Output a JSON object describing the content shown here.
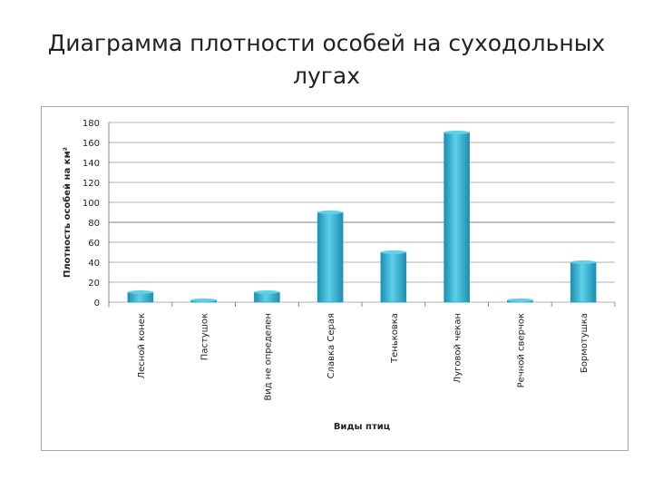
{
  "slide": {
    "title_line1": "Диаграмма плотности особей на суходольных",
    "title_line2": "лугах"
  },
  "chart_data": {
    "type": "bar",
    "categories": [
      "Лесной конек",
      "Пастушок",
      "Вид не определен",
      "Славка Серая",
      "Теньковка",
      "Луговой чекан",
      "Речной сверчок",
      "Бормотушка"
    ],
    "values": [
      10,
      2,
      10,
      90,
      50,
      170,
      2,
      40
    ],
    "xlabel": "Виды птиц",
    "ylabel": "Плотность особей на км²",
    "ylim": [
      0,
      180
    ],
    "yticks": [
      0,
      20,
      40,
      60,
      80,
      100,
      120,
      140,
      160,
      180
    ],
    "grid": true,
    "legend": "none",
    "colors": {
      "bar_light": "#5fd0ea",
      "bar_mid": "#31b4d6",
      "bar_dark": "#1a8fb2",
      "grid": "#b3b3b3",
      "grid_strong": "#7f7f7f"
    }
  }
}
